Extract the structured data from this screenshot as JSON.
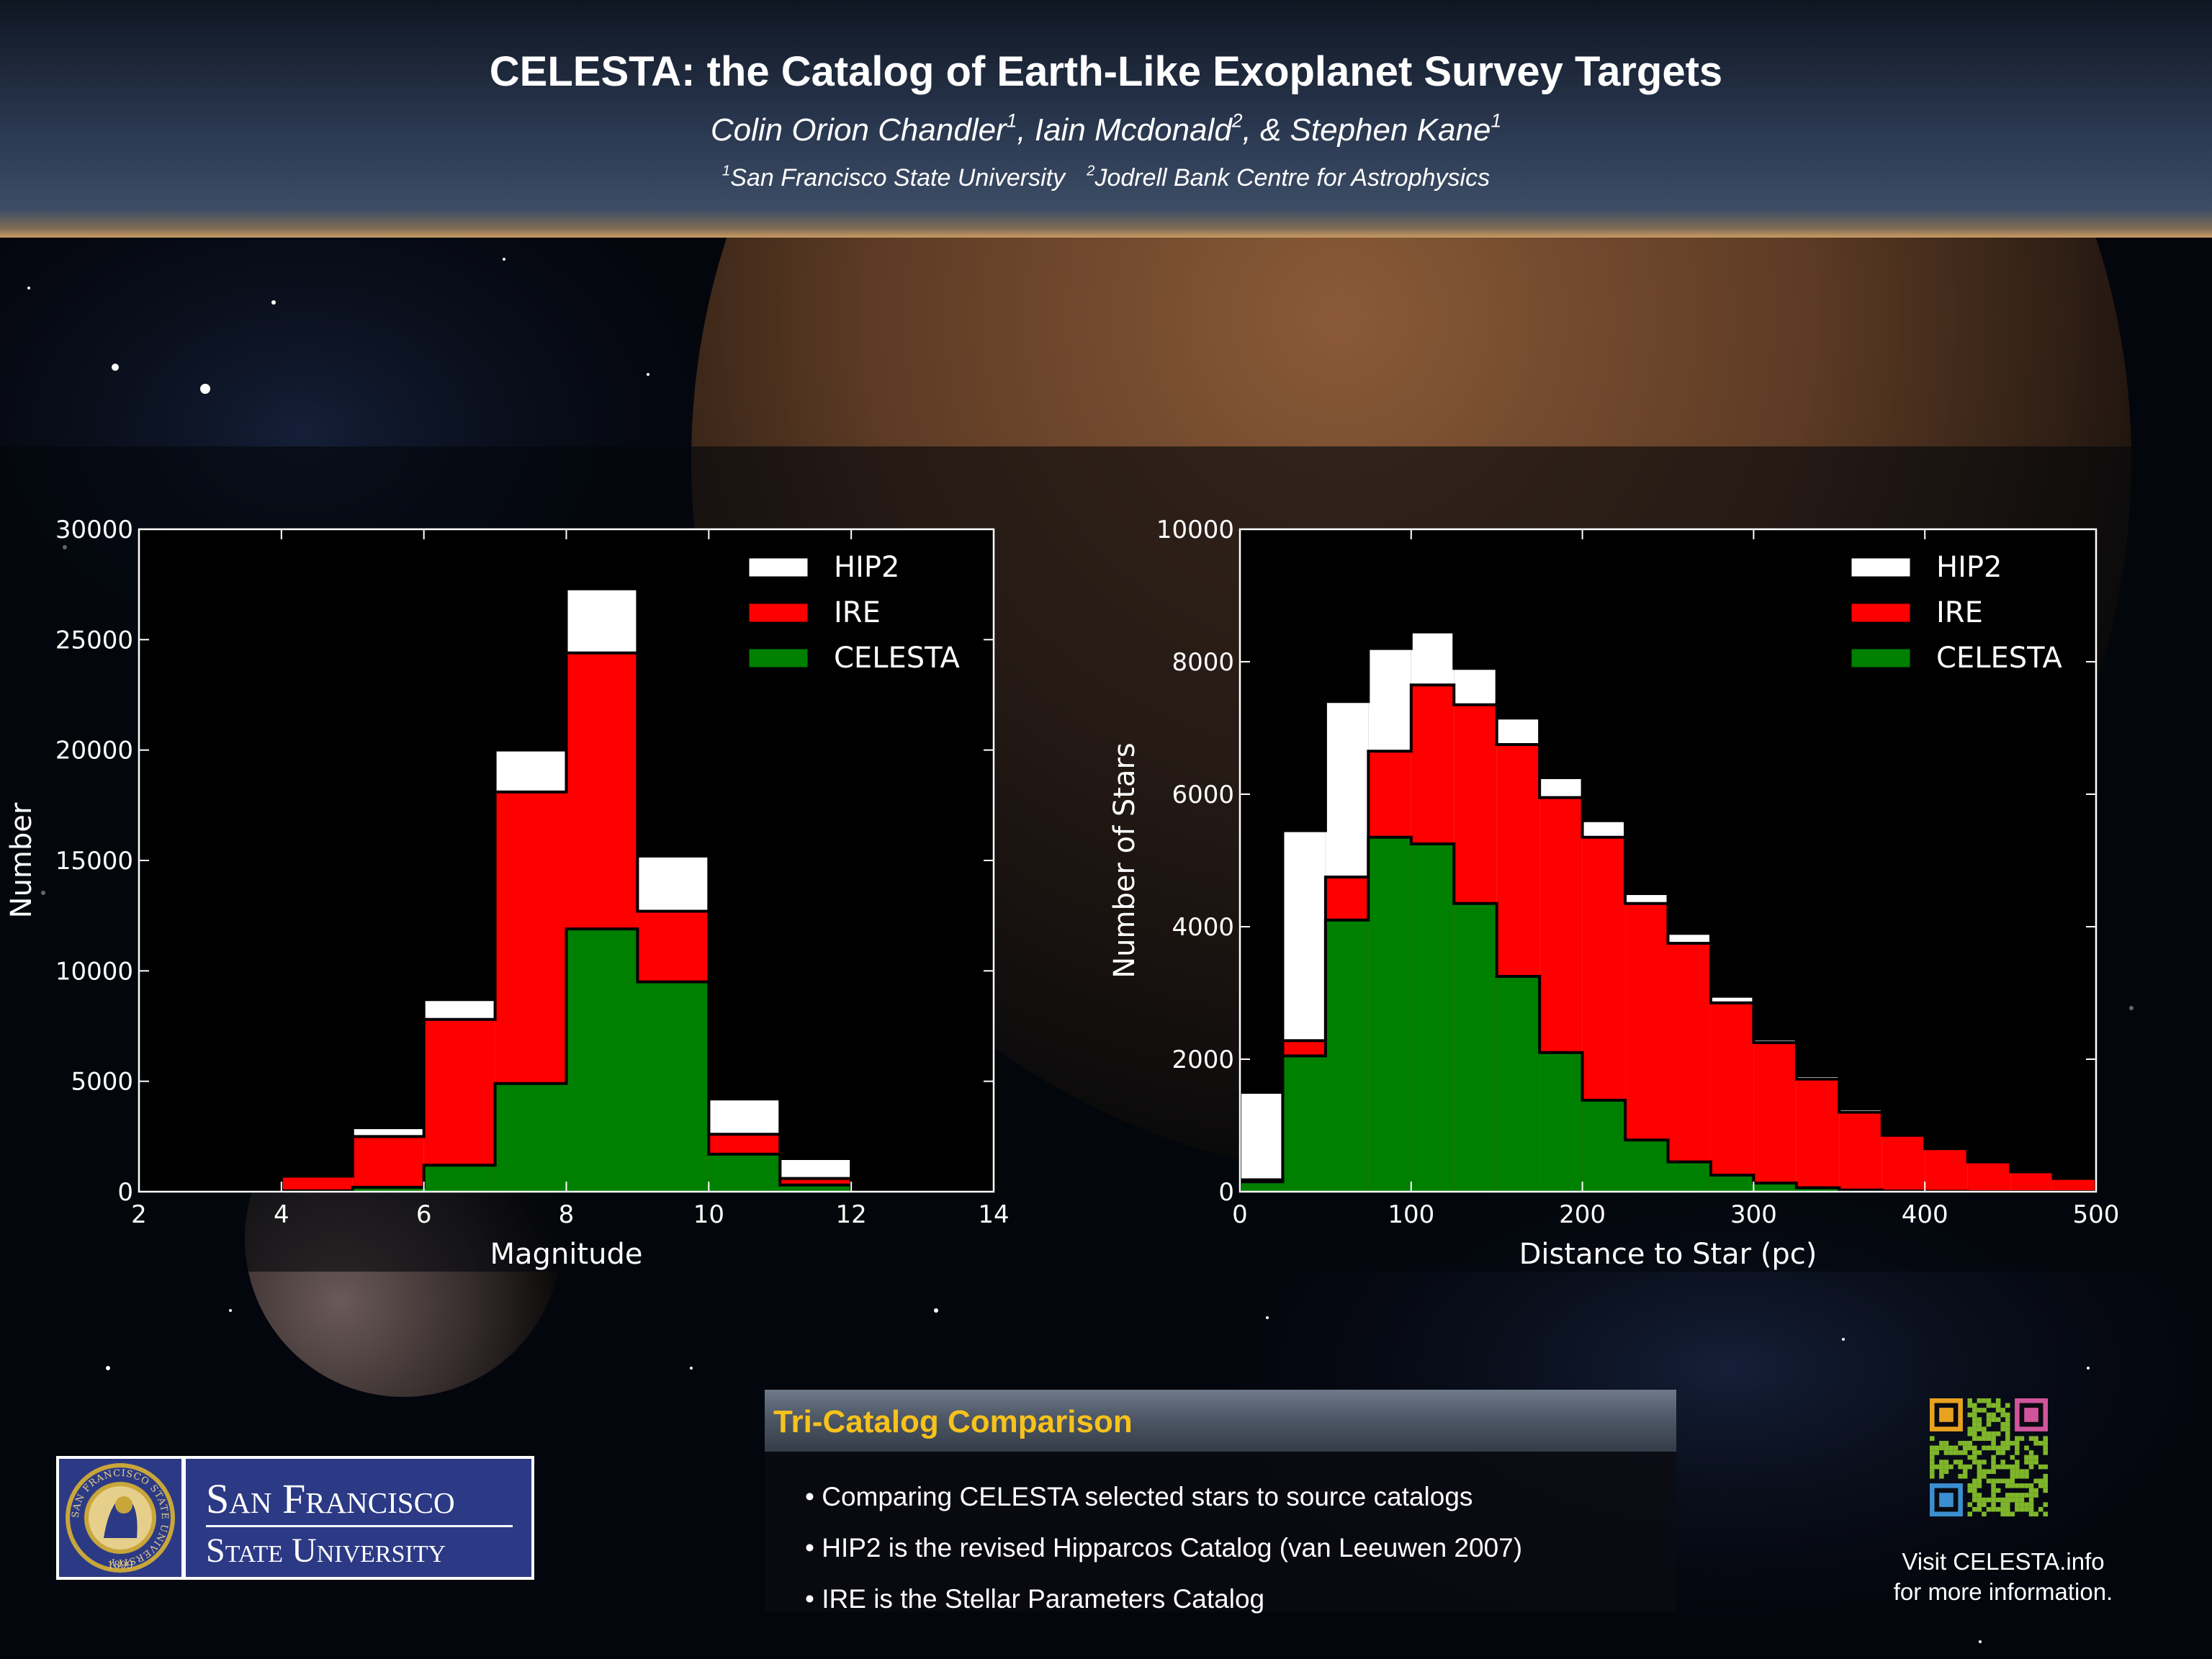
{
  "header": {
    "title": "CELESTA: the Catalog of Earth-Like Exoplanet Survey Targets",
    "authors": [
      {
        "name": "Colin Orion Chandler",
        "mark": "1",
        "sep": ", "
      },
      {
        "name": "Iain Mcdonald",
        "mark": "2",
        "sep": ", & "
      },
      {
        "name": "Stephen Kane",
        "mark": "1",
        "sep": ""
      }
    ],
    "affiliations": [
      {
        "mark": "1",
        "name": "San Francisco State University"
      },
      {
        "mark": "2",
        "name": "Jodrell Bank Centre for Astrophysics"
      }
    ]
  },
  "colors": {
    "hip2": "#ffffff",
    "ire": "#ff0000",
    "celesta": "#008000",
    "panel_title": "#f7c21c",
    "sfsu_blue": "#2c3a85"
  },
  "chart_data": [
    {
      "type": "bar",
      "subtype": "overlaid-histogram",
      "xlabel": "Magnitude",
      "ylabel": "Number",
      "xlim": [
        2,
        14
      ],
      "ylim": [
        0,
        30000
      ],
      "xticks": [
        "2",
        "4",
        "6",
        "8",
        "10",
        "12",
        "14"
      ],
      "yticks": [
        "0",
        "5000",
        "10000",
        "15000",
        "20000",
        "25000",
        "30000"
      ],
      "legend_position": "top-right",
      "bin_edges": [
        2,
        3,
        4,
        5,
        6,
        7,
        8,
        9,
        10,
        11,
        12,
        13,
        14
      ],
      "series": [
        {
          "name": "HIP2",
          "color": "#ffffff",
          "values": [
            0,
            80,
            800,
            2900,
            8700,
            20000,
            27300,
            15200,
            4200,
            1500,
            200,
            0
          ]
        },
        {
          "name": "IRE",
          "color": "#ff0000",
          "values": [
            0,
            70,
            700,
            2500,
            7800,
            18100,
            24400,
            12700,
            2600,
            600,
            80,
            0
          ]
        },
        {
          "name": "CELESTA",
          "color": "#008000",
          "values": [
            0,
            5,
            40,
            200,
            1200,
            4900,
            11900,
            9500,
            1700,
            300,
            30,
            0
          ]
        }
      ]
    },
    {
      "type": "bar",
      "subtype": "overlaid-histogram",
      "xlabel": "Distance to Star (pc)",
      "ylabel": "Number of Stars",
      "xlim": [
        0,
        500
      ],
      "ylim": [
        0,
        10000
      ],
      "xticks": [
        "0",
        "100",
        "200",
        "300",
        "400",
        "500"
      ],
      "yticks": [
        "0",
        "2000",
        "4000",
        "6000",
        "8000",
        "10000"
      ],
      "legend_position": "top-right",
      "bin_edges": [
        0,
        25,
        50,
        75,
        100,
        125,
        150,
        175,
        200,
        225,
        250,
        275,
        300,
        325,
        350,
        375,
        400,
        425,
        450,
        475,
        500
      ],
      "series": [
        {
          "name": "HIP2",
          "color": "#ffffff",
          "values": [
            1500,
            5450,
            7400,
            8200,
            8450,
            7900,
            7150,
            6250,
            5600,
            4500,
            3900,
            2950,
            2300,
            1750,
            1250,
            850,
            680,
            470,
            320,
            220
          ]
        },
        {
          "name": "IRE",
          "color": "#ff0000",
          "values": [
            180,
            2280,
            4750,
            6650,
            7650,
            7350,
            6750,
            5950,
            5350,
            4350,
            3750,
            2850,
            2250,
            1700,
            1200,
            850,
            650,
            450,
            300,
            200
          ]
        },
        {
          "name": "CELESTA",
          "color": "#008000",
          "values": [
            150,
            2050,
            4100,
            5350,
            5250,
            4350,
            3250,
            2100,
            1380,
            780,
            450,
            250,
            130,
            60,
            25,
            10,
            5,
            0,
            0,
            0
          ]
        }
      ]
    }
  ],
  "panel": {
    "title": "Tri-Catalog Comparison",
    "bullets": [
      "Comparing CELESTA selected stars to source catalogs",
      "HIP2 is the revised Hipparcos Catalog (van Leeuwen 2007)",
      "IRE is the Stellar Parameters Catalog"
    ]
  },
  "logo": {
    "line1": "San Francisco",
    "line2": "State University",
    "seal_text": "SAN FRANCISCO STATE UNIVERSITY",
    "seal_year": "1899"
  },
  "footer": {
    "visit_line1": "Visit CELESTA.info",
    "visit_line2": "for more information."
  },
  "icons": {
    "qr": "qr-code-icon",
    "seal": "university-seal-icon"
  }
}
